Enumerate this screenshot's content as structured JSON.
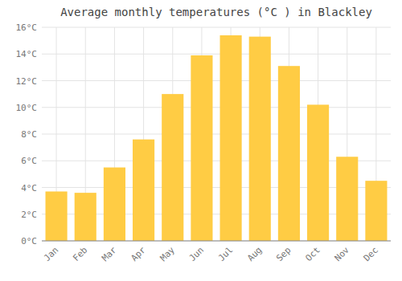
{
  "chart_data": {
    "type": "bar",
    "title": "Average monthly temperatures (°C ) in Blackley",
    "categories": [
      "Jan",
      "Feb",
      "Mar",
      "Apr",
      "May",
      "Jun",
      "Jul",
      "Aug",
      "Sep",
      "Oct",
      "Nov",
      "Dec"
    ],
    "values": [
      3.7,
      3.6,
      5.5,
      7.6,
      11.0,
      13.9,
      15.4,
      15.3,
      13.1,
      10.2,
      6.3,
      4.5
    ],
    "color": "#FFCC44",
    "ylim": [
      0,
      16
    ],
    "yticks": [
      {
        "value": 0,
        "label": "0°C"
      },
      {
        "value": 2,
        "label": "2°C"
      },
      {
        "value": 4,
        "label": "4°C"
      },
      {
        "value": 6,
        "label": "6°C"
      },
      {
        "value": 8,
        "label": "8°C"
      },
      {
        "value": 10,
        "label": "10°C"
      },
      {
        "value": 12,
        "label": "12°C"
      },
      {
        "value": 14,
        "label": "14°C"
      },
      {
        "value": 16,
        "label": "16°C"
      }
    ],
    "grid": true
  }
}
